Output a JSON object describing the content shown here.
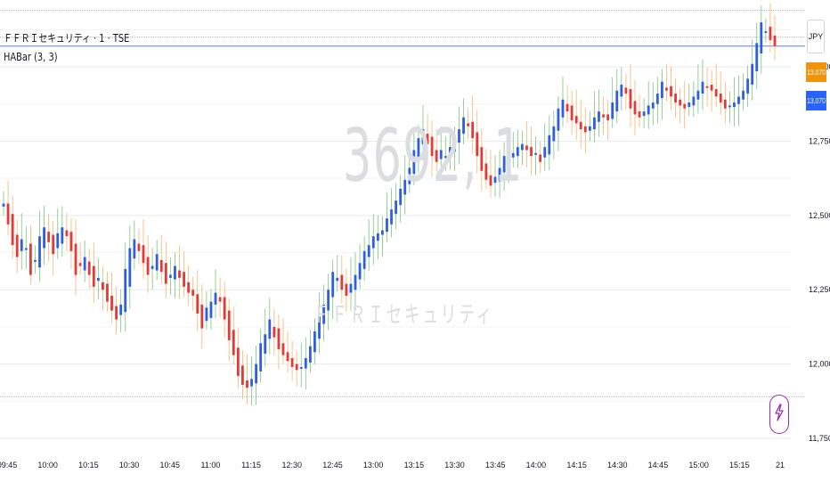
{
  "header": {
    "title": "ＦＦＲＩセキュリティ · 1 · TSE",
    "indicator": "HABar (3, 3)"
  },
  "watermark": {
    "symbol": "3692, 1",
    "name": "ＦＦＲＩセキュリティ"
  },
  "price_scale": {
    "currency": "JPY",
    "last_price_tag": "13,070",
    "prev_tag": "13,070",
    "orange_color": "#f0930b",
    "blue_color": "#2862ff"
  },
  "colors": {
    "up": "#2f5fe0",
    "down": "#e53935",
    "wick_up": "#7cc47f",
    "wick_down": "#f5b56d",
    "grid": "#e8eaef",
    "price_line": "#2962ff"
  },
  "icons": {
    "alert": "lightning-icon"
  },
  "chart_data": {
    "type": "candlestick",
    "title": "",
    "indicator": "HABar (3, 3)",
    "xlabel": "",
    "ylabel": "",
    "ylim": [
      11750,
      13225
    ],
    "y_ticks": [
      {
        "value": 11750,
        "label": "11,750"
      },
      {
        "value": 12000,
        "label": "12,000"
      },
      {
        "value": 12250,
        "label": "12,250"
      },
      {
        "value": 12500,
        "label": "12,500"
      },
      {
        "value": 12750,
        "label": "12,750"
      },
      {
        "value": 13000,
        "label": "13,000"
      }
    ],
    "x_ticks": [
      "09:45",
      "10:00",
      "10:15",
      "10:30",
      "10:45",
      "11:00",
      "11:15",
      "12:30",
      "12:45",
      "13:00",
      "13:15",
      "13:30",
      "13:45",
      "14:00",
      "14:15",
      "14:30",
      "14:45",
      "15:00",
      "15:15",
      "21"
    ],
    "horizontal_lines": [
      {
        "value": 13190,
        "color": "#9aa0a6"
      },
      {
        "value": 13100,
        "color": "#9aa0a6"
      },
      {
        "value": 13070,
        "color": "#2962ff"
      },
      {
        "value": 11890,
        "color": "#9aa0a6"
      }
    ],
    "last_price": 13070,
    "close_series": [
      12540,
      12470,
      12400,
      12360,
      12420,
      12390,
      12300,
      12350,
      12430,
      12460,
      12410,
      12370,
      12440,
      12460,
      12430,
      12380,
      12300,
      12330,
      12360,
      12300,
      12260,
      12290,
      12250,
      12210,
      12180,
      12150,
      12200,
      12320,
      12390,
      12420,
      12380,
      12340,
      12300,
      12330,
      12370,
      12310,
      12270,
      12300,
      12330,
      12290,
      12260,
      12240,
      12230,
      12170,
      12120,
      12190,
      12210,
      12240,
      12210,
      12150,
      12080,
      12030,
      11960,
      11930,
      11920,
      11950,
      12000,
      12070,
      12100,
      12150,
      12090,
      12050,
      12030,
      12010,
      11990,
      11980,
      11990,
      12020,
      12060,
      12110,
      12160,
      12200,
      12250,
      12310,
      12290,
      12250,
      12230,
      12270,
      12300,
      12340,
      12380,
      12400,
      12430,
      12440,
      12450,
      12490,
      12520,
      12550,
      12590,
      12620,
      12660,
      12720,
      12760,
      12790,
      12740,
      12700,
      12680,
      12720,
      12700,
      12730,
      12760,
      12790,
      12830,
      12800,
      12760,
      12700,
      12650,
      12620,
      12600,
      12630,
      12660,
      12700,
      12690,
      12710,
      12730,
      12740,
      12720,
      12700,
      12710,
      12680,
      12730,
      12770,
      12800,
      12860,
      12890,
      12850,
      12820,
      12810,
      12790,
      12780,
      12800,
      12830,
      12850,
      12830,
      12820,
      12880,
      12920,
      12940,
      12910,
      12860,
      12840,
      12830,
      12850,
      12870,
      12880,
      12910,
      12950,
      12920,
      12900,
      12880,
      12870,
      12860,
      12880,
      12900,
      12920,
      12950,
      12930,
      12920,
      12900,
      12880,
      12860,
      12870,
      12880,
      12900,
      12920,
      12960,
      13010,
      13080,
      13150,
      13120,
      13090,
      13070
    ]
  }
}
